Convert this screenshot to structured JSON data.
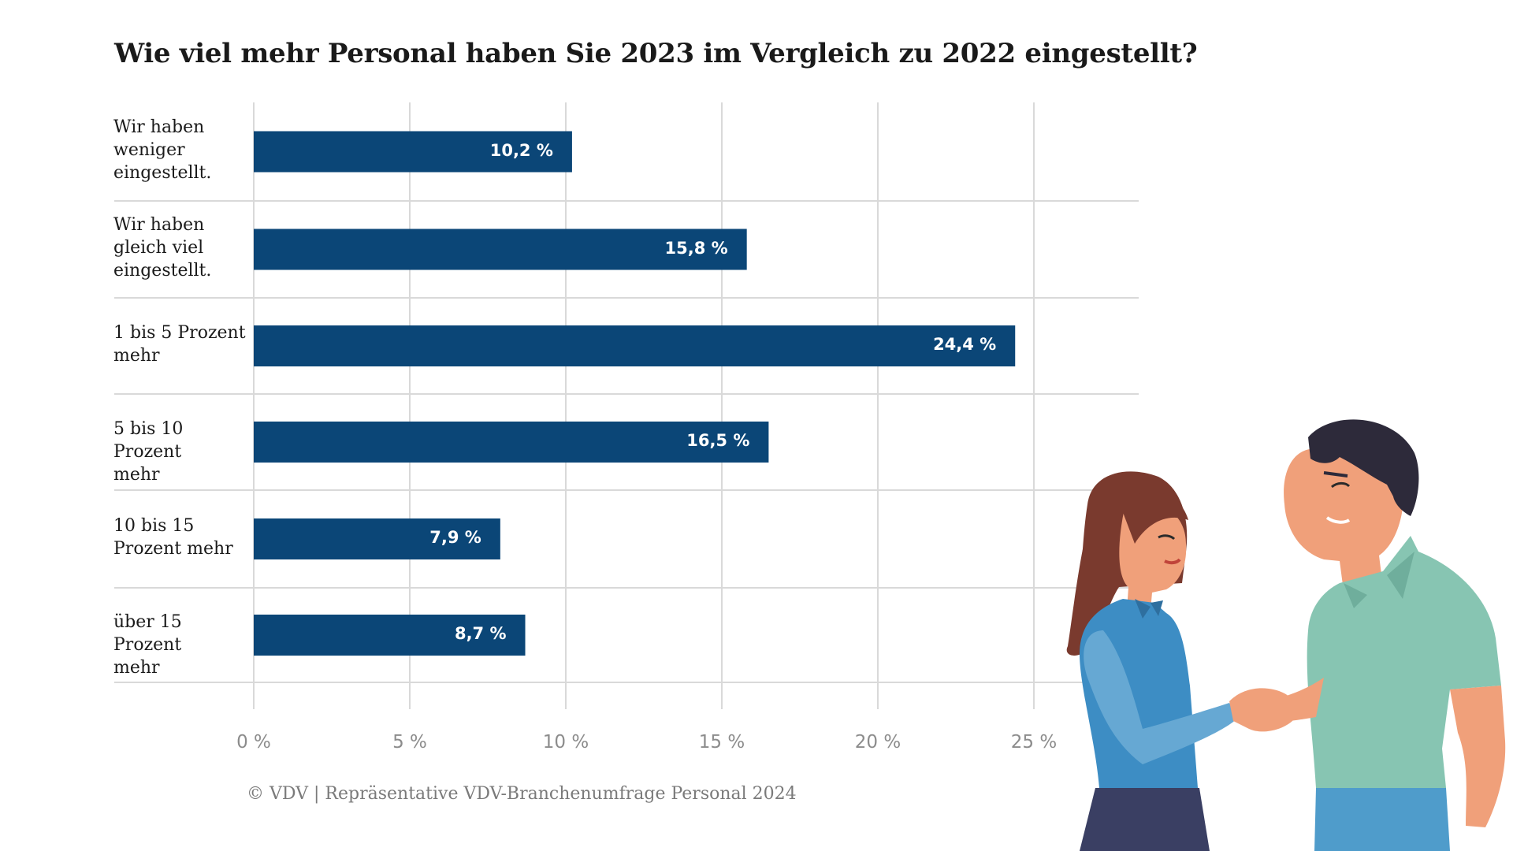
{
  "chart_data": {
    "type": "bar",
    "orientation": "horizontal",
    "title": "Wie viel mehr Personal haben Sie 2023 im Vergleich zu 2022 eingestellt?",
    "categories": [
      [
        "Wir haben",
        "weniger",
        "eingestellt."
      ],
      [
        "Wir haben",
        "gleich viel",
        "eingestellt."
      ],
      [
        "1 bis 5 Prozent",
        "mehr"
      ],
      [
        "5 bis 10 Prozent",
        "mehr"
      ],
      [
        "10 bis 15",
        "Prozent mehr"
      ],
      [
        "über 15 Prozent",
        "mehr"
      ]
    ],
    "values": [
      10.2,
      15.8,
      24.4,
      16.5,
      7.9,
      8.7
    ],
    "value_labels": [
      "10,2 %",
      "15,8 %",
      "24,4 %",
      "16,5 %",
      "7,9 %",
      "8,7 %"
    ],
    "xticks": [
      0,
      5,
      10,
      15,
      20,
      25
    ],
    "xtick_labels": [
      "0 %",
      "5 %",
      "10 %",
      "15 %",
      "20 %",
      "25 %"
    ],
    "xlim": [
      0,
      28
    ],
    "grid": true,
    "bar_color": "#0b4677",
    "grid_color": "#d9d9d9"
  },
  "source": "© VDV | Repräsentative VDV-Branchenumfrage Personal 2024",
  "illustration": {
    "description_icon": "handshake-illustration-icon",
    "shirt_woman": "#3d8dc4",
    "shirt_man": "#87c5b2",
    "skin": "#f0a07a",
    "hair_woman": "#7a3a2e",
    "hair_man": "#2d2a3a",
    "skirt": "#3a3f63",
    "pants": "#4f9ccb"
  }
}
